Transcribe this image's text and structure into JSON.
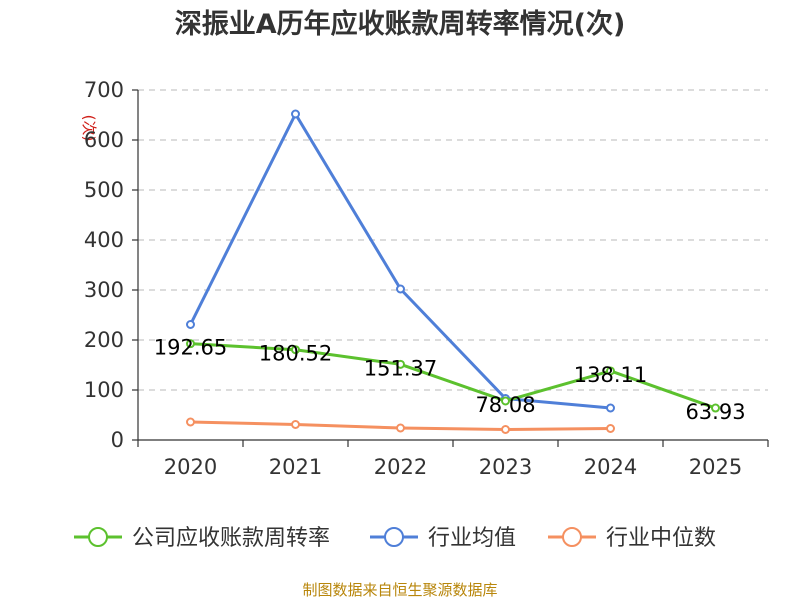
{
  "chart_data": {
    "type": "line",
    "title": "深振业A历年应收账款周转率情况(次)",
    "ylabel": "(次)",
    "ylim": [
      0,
      700
    ],
    "yticks": [
      "0",
      "100",
      "200",
      "300",
      "400",
      "500",
      "600",
      "700"
    ],
    "categories": [
      "2020",
      "2021",
      "2022",
      "2023",
      "2024",
      "2025"
    ],
    "series": [
      {
        "name": "公司应收账款周转率",
        "color": "#5cc12e",
        "values": [
          192.65,
          180.52,
          151.37,
          78.08,
          138.11,
          63.93
        ],
        "labels": [
          "192.65",
          "180.52",
          "151.37",
          "78.08",
          "138.11",
          "63.93"
        ]
      },
      {
        "name": "行业均值",
        "color": "#4f7fd8",
        "values": [
          231,
          652,
          302,
          83,
          64,
          null
        ]
      },
      {
        "name": "行业中位数",
        "color": "#f59060",
        "values": [
          36,
          31,
          24,
          21,
          23,
          null
        ]
      }
    ],
    "source": "制图数据来自恒生聚源数据库"
  }
}
